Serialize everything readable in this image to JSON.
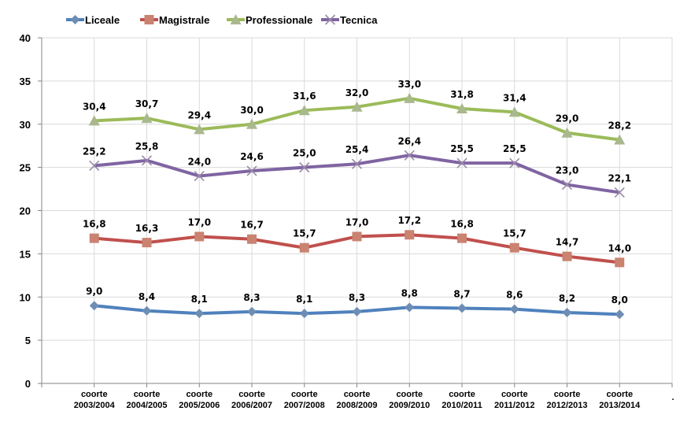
{
  "chart_data": {
    "type": "line",
    "title": "",
    "xlabel": "",
    "ylabel": "",
    "ylim": [
      0,
      40
    ],
    "yticks": [
      0,
      5,
      10,
      15,
      20,
      25,
      30,
      35,
      40
    ],
    "grid": true,
    "legend_position": "top",
    "categories": [
      [
        "coorte",
        "2003/2004"
      ],
      [
        "coorte",
        "2004/2005"
      ],
      [
        "coorte",
        "2005/2006"
      ],
      [
        "coorte",
        "2006/2007"
      ],
      [
        "coorte",
        "2007/2008"
      ],
      [
        "coorte",
        "2008/2009"
      ],
      [
        "coorte",
        "2009/2010"
      ],
      [
        "coorte",
        "2010/2011"
      ],
      [
        "coorte",
        "2011/2012"
      ],
      [
        "coorte",
        "2012/2013"
      ],
      [
        "coorte",
        "2013/2014"
      ]
    ],
    "extra_category_label": ".",
    "series": [
      {
        "name": "Liceale",
        "color": "#4f81bd",
        "marker_color": "#6e8db5",
        "marker": "diamond",
        "values": [
          9.0,
          8.4,
          8.1,
          8.3,
          8.1,
          8.3,
          8.8,
          8.7,
          8.6,
          8.2,
          8.0
        ],
        "labels": [
          "9,0",
          "8,4",
          "8,1",
          "8,3",
          "8,1",
          "8,3",
          "8,8",
          "8,7",
          "8,6",
          "8,2",
          "8,0"
        ]
      },
      {
        "name": "Magistrale",
        "color": "#c0504d",
        "marker_color": "#c98370",
        "marker": "square",
        "values": [
          16.8,
          16.3,
          17.0,
          16.7,
          15.7,
          17.0,
          17.2,
          16.8,
          15.7,
          14.7,
          14.0
        ],
        "labels": [
          "16,8",
          "16,3",
          "17,0",
          "16,7",
          "15,7",
          "17,0",
          "17,2",
          "16,8",
          "15,7",
          "14,7",
          "14,0"
        ]
      },
      {
        "name": "Professionale",
        "color": "#9bbb59",
        "marker_color": "#a9b88e",
        "marker": "triangle",
        "values": [
          30.4,
          30.7,
          29.4,
          30.0,
          31.6,
          32.0,
          33.0,
          31.8,
          31.4,
          29.0,
          28.2
        ],
        "labels": [
          "30,4",
          "30,7",
          "29,4",
          "30,0",
          "31,6",
          "32,0",
          "33,0",
          "31,8",
          "31,4",
          "29,0",
          "28,2"
        ]
      },
      {
        "name": "Tecnica",
        "color": "#8064a2",
        "marker_color": "#9a8aa8",
        "marker": "x",
        "values": [
          25.2,
          25.8,
          24.0,
          24.6,
          25.0,
          25.4,
          26.4,
          25.5,
          25.5,
          23.0,
          22.1
        ],
        "labels": [
          "25,2",
          "25,8",
          "24,0",
          "24,6",
          "25,0",
          "25,4",
          "26,4",
          "25,5",
          "25,5",
          "23,0",
          "22,1"
        ]
      }
    ]
  }
}
